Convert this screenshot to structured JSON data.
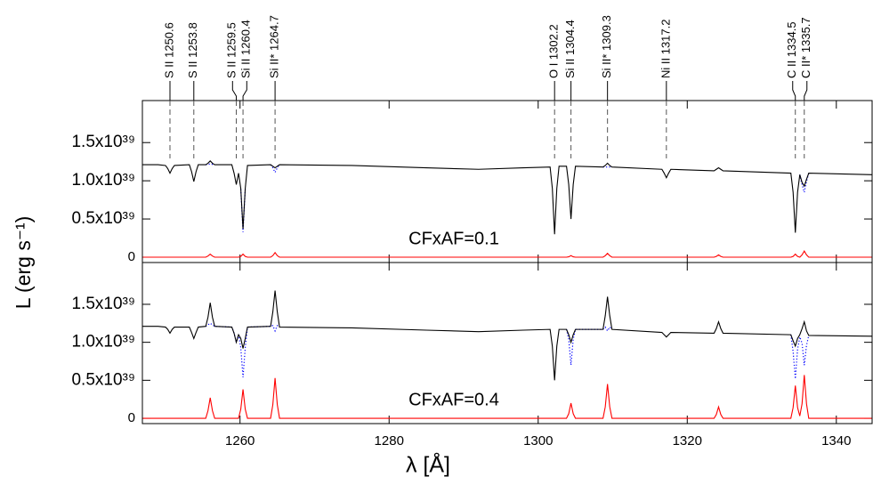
{
  "chart_data": {
    "type": "line",
    "xlabel": "λ [Å]",
    "ylabel": "L (erg s⁻¹)",
    "xlim": [
      1246.9,
      1344.8
    ],
    "xticks": [
      1260,
      1280,
      1300,
      1320,
      1340
    ],
    "ylim": [
      -7e+37,
      2.05e+39
    ],
    "yticks": [
      0,
      {
        "value": 5e+38,
        "label": "0.5x10³⁹"
      },
      {
        "value": 1e+39,
        "label": "1.0x10³⁹"
      },
      {
        "value": 1.5e+39,
        "label": "1.5x10³⁹"
      }
    ],
    "annotations": [
      {
        "label": "S II 1250.6",
        "x": 1250.6
      },
      {
        "label": "S II 1253.8",
        "x": 1253.8
      },
      {
        "label": "S II 1259.5",
        "x": 1259.5
      },
      {
        "label": "Si II 1260.4",
        "x": 1260.4
      },
      {
        "label": "Si II* 1264.7",
        "x": 1264.7
      },
      {
        "label": "O I 1302.2",
        "x": 1302.2
      },
      {
        "label": "Si II 1304.4",
        "x": 1304.4
      },
      {
        "label": "Si II* 1309.3",
        "x": 1309.3
      },
      {
        "label": "Ni II 1317.2",
        "x": 1317.2
      },
      {
        "label": "C II 1334.5",
        "x": 1334.5
      },
      {
        "label": "C II* 1335.7",
        "x": 1335.7
      }
    ],
    "x": [
      1246.9,
      1249,
      1250.0,
      1250.3,
      1250.6,
      1250.9,
      1251.2,
      1253.2,
      1253.5,
      1253.8,
      1254.1,
      1254.4,
      1255.4,
      1255.7,
      1256.0,
      1256.3,
      1256.6,
      1258.9,
      1259.2,
      1259.5,
      1259.8,
      1260.1,
      1260.4,
      1260.7,
      1261.0,
      1264.1,
      1264.4,
      1264.7,
      1265.0,
      1265.3,
      1275,
      1285,
      1292,
      1298,
      1301.6,
      1301.9,
      1302.2,
      1302.5,
      1302.8,
      1303.8,
      1304.1,
      1304.4,
      1304.7,
      1305.0,
      1308.7,
      1309.0,
      1309.3,
      1309.6,
      1309.9,
      1316.6,
      1316.9,
      1317.2,
      1317.5,
      1317.8,
      1323.6,
      1323.9,
      1324.2,
      1324.5,
      1324.8,
      1333.9,
      1334.2,
      1334.5,
      1334.8,
      1335.1,
      1335.4,
      1335.7,
      1336.0,
      1336.3,
      1344.8
    ],
    "panels": [
      {
        "label": "CFxAF=0.1",
        "series": [
          {
            "color": "#0000ff",
            "dash": "dotted",
            "values": [
              null,
              null,
              null,
              null,
              null,
              null,
              null,
              null,
              null,
              null,
              null,
              null,
              1.21e+39,
              1.215e+39,
              1.22e+39,
              1.215e+39,
              1.21e+39,
              null,
              null,
              null,
              null,
              8.9e+38,
              3.3e+38,
              8.9e+38,
              null,
              1.21e+39,
              1.17e+39,
              1.11e+39,
              1.17e+39,
              1.21e+39,
              null,
              null,
              null,
              null,
              null,
              null,
              null,
              null,
              null,
              null,
              null,
              null,
              null,
              null,
              1.18e+39,
              1.18e+39,
              1.18e+39,
              1.18e+39,
              1.18e+39,
              null,
              null,
              null,
              null,
              null,
              null,
              null,
              null,
              null,
              null,
              null,
              null,
              null,
              null,
              1.08e+39,
              9.5e+38,
              8.5e+38,
              9.9e+38,
              1.1e+39,
              null
            ]
          },
          {
            "color": "#000000",
            "dash": "solid",
            "values": [
              1.21e+39,
              1.21e+39,
              1.2e+39,
              1.16e+39,
              1.1e+39,
              1.16e+39,
              1.2e+39,
              1.21e+39,
              1.12e+39,
              9.9e+38,
              1.12e+39,
              1.21e+39,
              1.21e+39,
              1.23e+39,
              1.26e+39,
              1.23e+39,
              1.21e+39,
              1.21e+39,
              1.1e+39,
              9.5e+38,
              1.1e+39,
              9e+38,
              3.7e+38,
              9e+38,
              1.2e+39,
              1.21e+39,
              1.19e+39,
              1.17e+39,
              1.19e+39,
              1.21e+39,
              1.2e+39,
              1.17e+39,
              1.15e+39,
              1.17e+39,
              1.18e+39,
              9e+38,
              3e+38,
              9e+38,
              1.19e+39,
              1.19e+39,
              9.5e+38,
              5e+38,
              9.5e+38,
              1.19e+39,
              1.18e+39,
              1.2e+39,
              1.23e+39,
              1.2e+39,
              1.18e+39,
              1.15e+39,
              1.1e+39,
              1.04e+39,
              1.1e+39,
              1.15e+39,
              1.13e+39,
              1.15e+39,
              1.17e+39,
              1.15e+39,
              1.13e+39,
              1.1e+39,
              8.5e+38,
              3.2e+38,
              8.5e+38,
              1.08e+39,
              9.8e+38,
              9.3e+38,
              1.02e+39,
              1.1e+39,
              1.08e+39
            ]
          },
          {
            "color": "#ff0000",
            "dash": "solid",
            "values": [
              0,
              0,
              0,
              0,
              0,
              0,
              0,
              0,
              0,
              0,
              0,
              0,
              0,
              1.5e+37,
              4e+37,
              1.5e+37,
              0,
              0,
              0,
              0,
              0,
              1e+37,
              4e+37,
              1e+37,
              0,
              0,
              2e+37,
              6e+37,
              2e+37,
              0,
              0,
              0,
              0,
              0,
              0,
              0,
              0,
              0,
              0,
              0,
              5e+36,
              2e+37,
              5e+36,
              0,
              0,
              2e+37,
              5e+37,
              2e+37,
              0,
              0,
              0,
              0,
              0,
              0,
              0,
              1e+37,
              3e+37,
              1e+37,
              0,
              0,
              1e+37,
              4e+37,
              1e+37,
              0,
              3e+37,
              8e+37,
              3e+37,
              0,
              0
            ]
          }
        ]
      },
      {
        "label": "CFxAF=0.4",
        "series": [
          {
            "color": "#0000ff",
            "dash": "dotted",
            "values": [
              null,
              null,
              null,
              null,
              null,
              null,
              null,
              null,
              null,
              null,
              null,
              null,
              1.21e+39,
              1.23e+39,
              1.25e+39,
              1.23e+39,
              1.21e+39,
              1.2e+39,
              1.12e+39,
              1e+39,
              1.1e+39,
              9.3e+38,
              5.4e+38,
              9.3e+38,
              1.2e+39,
              1.21e+39,
              1.22e+39,
              1.15e+39,
              1.22e+39,
              1.2e+39,
              null,
              null,
              null,
              null,
              null,
              null,
              null,
              null,
              null,
              1.17e+39,
              1.04e+39,
              7e+38,
              1.04e+39,
              1.17e+39,
              1.17e+39,
              1.2e+39,
              1.15e+39,
              1.2e+39,
              1.17e+39,
              null,
              null,
              null,
              null,
              null,
              null,
              null,
              null,
              null,
              null,
              1.1e+39,
              8.8e+38,
              5.2e+38,
              9.1e+38,
              1.07e+39,
              9.9e+38,
              7e+38,
              9.6e+38,
              1.09e+39,
              null
            ]
          },
          {
            "color": "#000000",
            "dash": "solid",
            "values": [
              1.21e+39,
              1.21e+39,
              1.2e+39,
              1.17e+39,
              1.12e+39,
              1.17e+39,
              1.2e+39,
              1.2e+39,
              1.13e+39,
              1.05e+39,
              1.13e+39,
              1.2e+39,
              1.21e+39,
              1.33e+39,
              1.52e+39,
              1.33e+39,
              1.21e+39,
              1.2e+39,
              1.12e+39,
              1e+39,
              1.1e+39,
              1.05e+39,
              9.2e+38,
              1.05e+39,
              1.2e+39,
              1.21e+39,
              1.4e+39,
              1.68e+39,
              1.4e+39,
              1.2e+39,
              1.19e+39,
              1.16e+39,
              1.14e+39,
              1.16e+39,
              1.17e+39,
              9.5e+38,
              5e+38,
              9.5e+38,
              1.17e+39,
              1.17e+39,
              1.1e+39,
              1e+39,
              1.1e+39,
              1.17e+39,
              1.17e+39,
              1.35e+39,
              1.6e+39,
              1.35e+39,
              1.17e+39,
              1.13e+39,
              1.1e+39,
              1.07e+39,
              1.1e+39,
              1.13e+39,
              1.12e+39,
              1.18e+39,
              1.27e+39,
              1.18e+39,
              1.12e+39,
              1.1e+39,
              1.02e+39,
              9.5e+38,
              1.05e+39,
              1.1e+39,
              1.18e+39,
              1.27e+39,
              1.15e+39,
              1.09e+39,
              1.08e+39
            ]
          },
          {
            "color": "#ff0000",
            "dash": "solid",
            "values": [
              0,
              0,
              0,
              0,
              0,
              0,
              0,
              0,
              0,
              0,
              0,
              0,
              0,
              1e+38,
              2.7e+38,
              1e+38,
              0,
              0,
              0,
              0,
              0,
              1.2e+38,
              3.8e+38,
              1.2e+38,
              0,
              0,
              1.8e+38,
              5.3e+38,
              1.8e+38,
              0,
              0,
              0,
              0,
              0,
              0,
              0,
              0,
              0,
              0,
              0,
              6e+37,
              2e+38,
              6e+37,
              0,
              0,
              1.5e+38,
              4.5e+38,
              1.5e+38,
              0,
              0,
              0,
              0,
              0,
              0,
              0,
              5e+37,
              1.5e+38,
              5e+37,
              0,
              0,
              1.4e+38,
              4.3e+38,
              1.4e+38,
              3e+37,
              1.9e+38,
              5.7e+38,
              1.9e+38,
              0,
              0
            ]
          }
        ]
      }
    ]
  }
}
